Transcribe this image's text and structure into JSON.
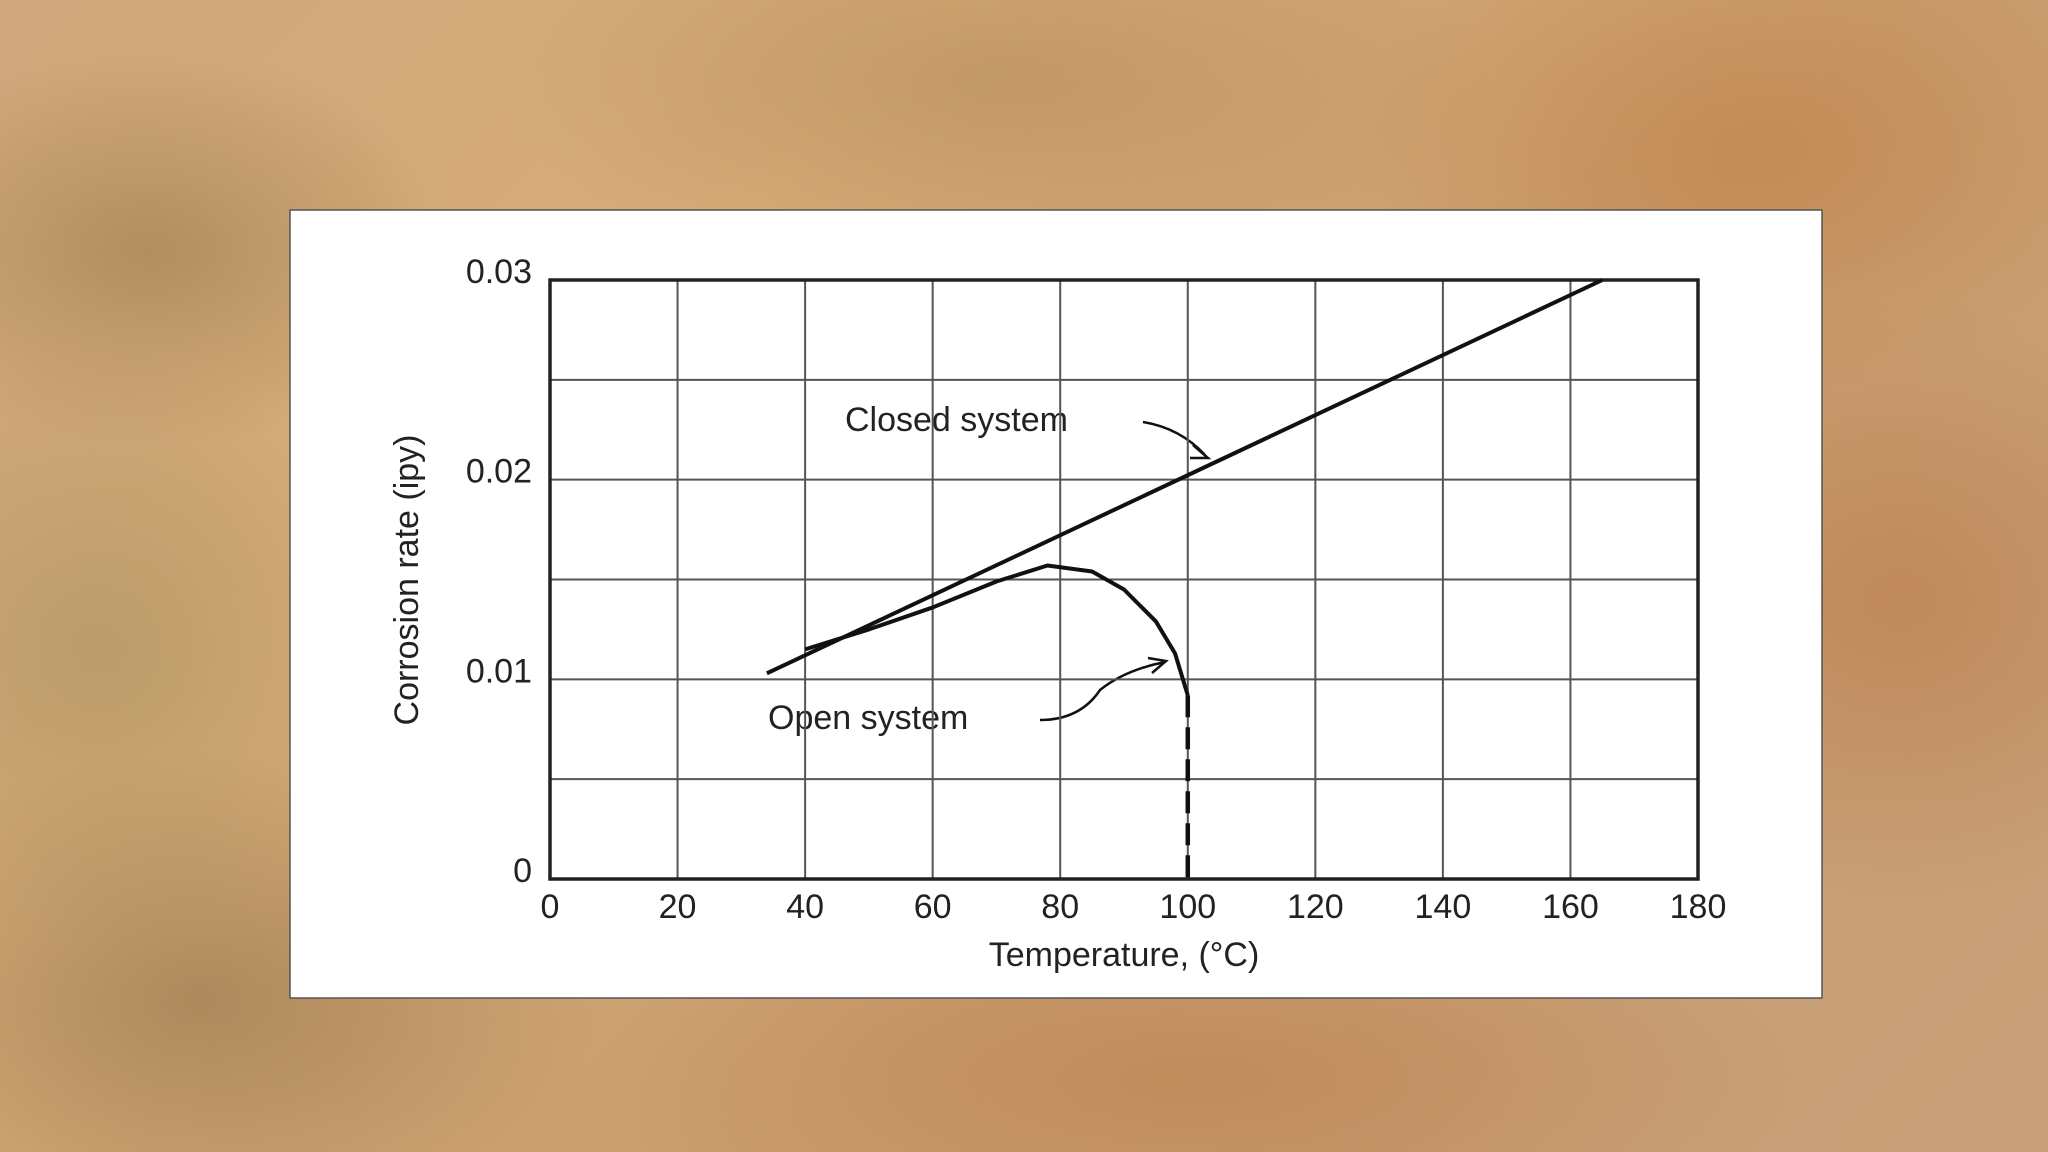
{
  "chart_data": {
    "type": "line",
    "xlabel": "Temperature, (°C)",
    "ylabel": "Corrosion rate (ipy)",
    "xlim": [
      0,
      180
    ],
    "xticks": [
      0,
      20,
      40,
      60,
      80,
      100,
      120,
      140,
      160,
      180
    ],
    "ylim": [
      0,
      0.03
    ],
    "yticks": [
      0,
      0.01,
      0.02,
      0.03
    ],
    "ygrid_minor": [
      0.005,
      0.015,
      0.025
    ],
    "grid": true,
    "series": [
      {
        "name": "Closed system",
        "color": "#111111",
        "x": [
          34,
          165
        ],
        "values": [
          0.0103,
          0.03
        ]
      },
      {
        "name": "Open system",
        "color": "#111111",
        "x": [
          40,
          50,
          60,
          70,
          78,
          85,
          90,
          95,
          98,
          100
        ],
        "values": [
          0.0115,
          0.0125,
          0.0136,
          0.0149,
          0.0157,
          0.0154,
          0.0145,
          0.0129,
          0.0113,
          0.0092
        ]
      }
    ],
    "dashed_drop": {
      "x": [
        100,
        100
      ],
      "values": [
        0.0092,
        0
      ]
    }
  }
}
